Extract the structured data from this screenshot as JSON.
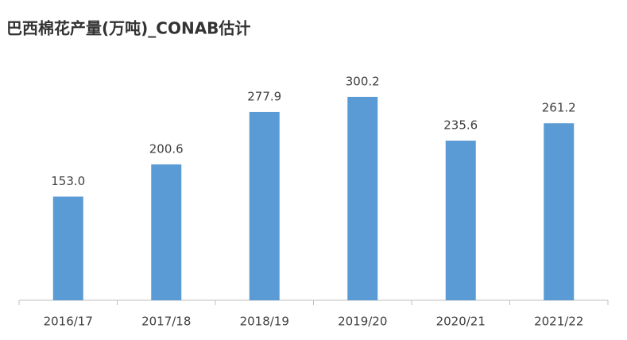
{
  "chart_data": {
    "type": "bar",
    "title": "巴西棉花产量(万吨)_CONAB估计",
    "categories": [
      "2016/17",
      "2017/18",
      "2018/19",
      "2019/20",
      "2020/21",
      "2021/22"
    ],
    "values": [
      153.0,
      200.6,
      277.9,
      300.2,
      235.6,
      261.2
    ],
    "value_labels": [
      "153.0",
      "200.6",
      "277.9",
      "300.2",
      "235.6",
      "261.2"
    ],
    "color": "#5b9bd5",
    "ylim": [
      0,
      350
    ],
    "grid": false
  }
}
